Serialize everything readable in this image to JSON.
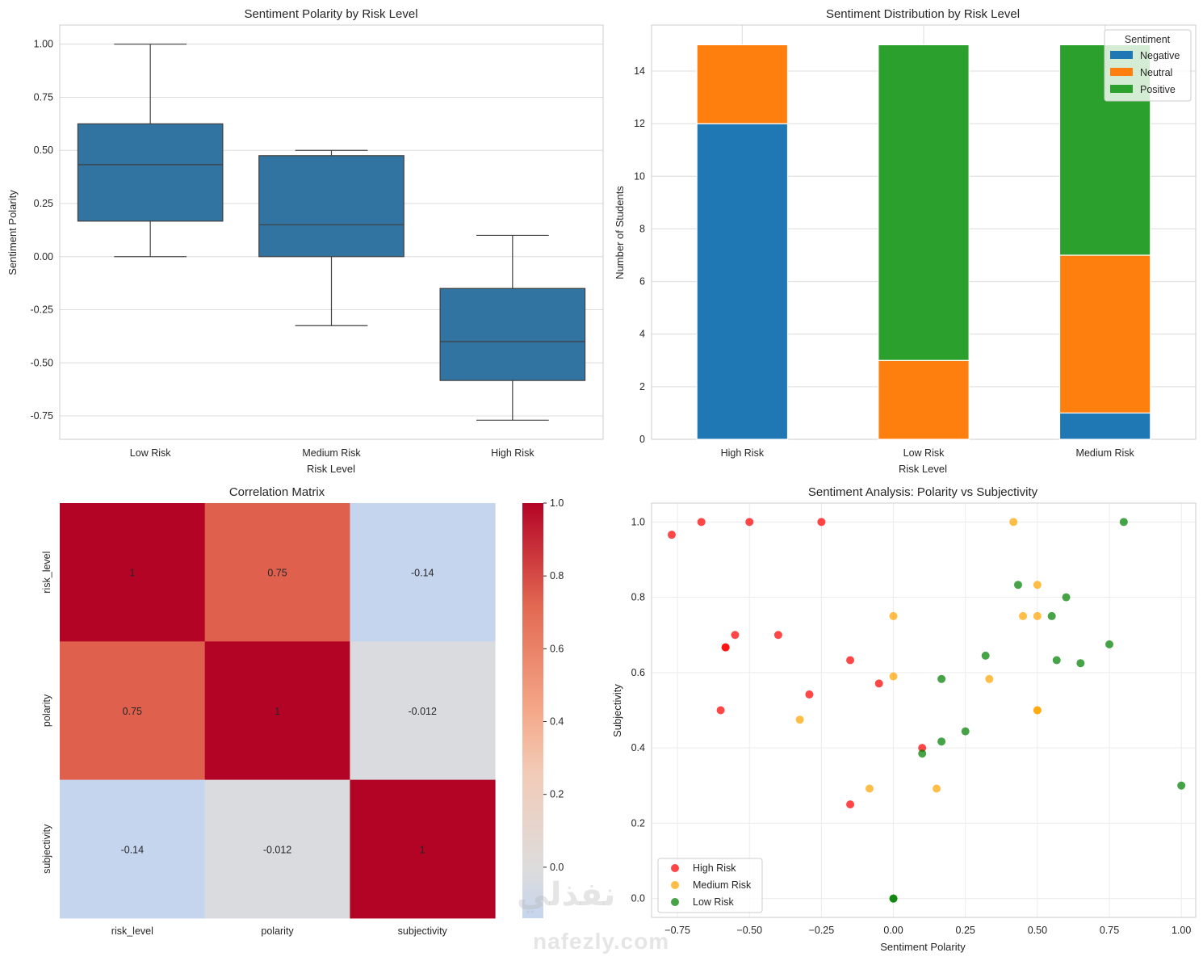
{
  "chart_data": [
    {
      "type": "box",
      "title": "Sentiment Polarity by Risk Level",
      "xlabel": "Risk Level",
      "ylabel": "Sentiment Polarity",
      "categories": [
        "Low Risk",
        "Medium Risk",
        "High Risk"
      ],
      "boxes": [
        {
          "whisker_low": 0.0,
          "q1": 0.167,
          "median": 0.433,
          "q3": 0.625,
          "whisker_high": 1.0
        },
        {
          "whisker_low": -0.325,
          "q1": 0.0,
          "median": 0.15,
          "q3": 0.475,
          "whisker_high": 0.5
        },
        {
          "whisker_low": -0.77,
          "q1": -0.583,
          "median": -0.4,
          "q3": -0.15,
          "whisker_high": 0.1
        }
      ],
      "yticks": [
        "1.00",
        "0.75",
        "0.50",
        "0.25",
        "0.00",
        "-0.25",
        "-0.50",
        "-0.75"
      ],
      "ytick_values": [
        1.0,
        0.75,
        0.5,
        0.25,
        0.0,
        -0.25,
        -0.5,
        -0.75
      ],
      "ylim": [
        -0.86,
        1.09
      ],
      "color": "#3274a1",
      "grid": true
    },
    {
      "type": "bar",
      "stacked": true,
      "title": "Sentiment Distribution by Risk Level",
      "xlabel": "Risk Level",
      "ylabel": "Number of Students",
      "categories": [
        "High Risk",
        "Low Risk",
        "Medium Risk"
      ],
      "series": [
        {
          "name": "Negative",
          "color": "#1f77b4",
          "values": [
            12,
            0,
            1
          ]
        },
        {
          "name": "Neutral",
          "color": "#ff7f0e",
          "values": [
            3,
            3,
            6
          ]
        },
        {
          "name": "Positive",
          "color": "#2ca02c",
          "values": [
            0,
            12,
            8
          ]
        }
      ],
      "legend_title": "Sentiment",
      "legend_position": "top-right",
      "yticks": [
        "0",
        "2",
        "4",
        "6",
        "8",
        "10",
        "12",
        "14"
      ],
      "ytick_values": [
        0,
        2,
        4,
        6,
        8,
        10,
        12,
        14
      ],
      "ylim": [
        0,
        15.75
      ],
      "grid": true
    },
    {
      "type": "heatmap",
      "title": "Correlation Matrix",
      "rows": [
        "risk_level",
        "polarity",
        "subjectivity"
      ],
      "cols": [
        "risk_level",
        "polarity",
        "subjectivity"
      ],
      "values": [
        [
          1,
          0.75,
          -0.14
        ],
        [
          0.75,
          1,
          -0.012
        ],
        [
          -0.14,
          -0.012,
          1
        ]
      ],
      "labels": [
        [
          "1",
          "0.75",
          "-0.14"
        ],
        [
          "0.75",
          "1",
          "-0.012"
        ],
        [
          "-0.14",
          "-0.012",
          "1"
        ]
      ],
      "colormap": "coolwarm",
      "colorbar_range": [
        -0.14,
        1.0
      ],
      "colorbar_ticks": [
        "1.0",
        "0.8",
        "0.6",
        "0.4",
        "0.2",
        "0.0"
      ],
      "colorbar_tick_values": [
        1.0,
        0.8,
        0.6,
        0.4,
        0.2,
        0.0
      ]
    },
    {
      "type": "scatter",
      "title": "Sentiment Analysis: Polarity vs Subjectivity",
      "xlabel": "Sentiment Polarity",
      "ylabel": "Subjectivity",
      "xlim": [
        -0.84,
        1.05
      ],
      "ylim": [
        -0.05,
        1.05
      ],
      "xticks": [
        "−0.75",
        "−0.50",
        "−0.25",
        "0.00",
        "0.25",
        "0.50",
        "0.75",
        "1.00"
      ],
      "xtick_values": [
        -0.75,
        -0.5,
        -0.25,
        0.0,
        0.25,
        0.5,
        0.75,
        1.0
      ],
      "yticks": [
        "0.0",
        "0.2",
        "0.4",
        "0.6",
        "0.8",
        "1.0"
      ],
      "ytick_values": [
        0.0,
        0.2,
        0.4,
        0.6,
        0.8,
        1.0
      ],
      "legend_position": "lower-left",
      "grid": true,
      "series": [
        {
          "name": "High Risk",
          "color": "#ff0000",
          "points": [
            [
              -0.77,
              0.966
            ],
            [
              -0.667,
              1.0
            ],
            [
              -0.5,
              1.0
            ],
            [
              -0.25,
              1.0
            ],
            [
              -0.55,
              0.7
            ],
            [
              -0.583,
              0.667
            ],
            [
              -0.583,
              0.667
            ],
            [
              -0.4,
              0.7
            ],
            [
              -0.15,
              0.633
            ],
            [
              -0.05,
              0.571
            ],
            [
              -0.292,
              0.542
            ],
            [
              -0.6,
              0.5
            ],
            [
              -0.15,
              0.25
            ],
            [
              0.1,
              0.4
            ]
          ]
        },
        {
          "name": "Medium Risk",
          "color": "#ffa500",
          "points": [
            [
              0.417,
              1.0
            ],
            [
              0.0,
              0.75
            ],
            [
              0.5,
              0.833
            ],
            [
              0.45,
              0.75
            ],
            [
              0.5,
              0.75
            ],
            [
              0.0,
              0.59
            ],
            [
              0.333,
              0.583
            ],
            [
              -0.325,
              0.475
            ],
            [
              -0.083,
              0.292
            ],
            [
              0.15,
              0.292
            ],
            [
              0.5,
              0.5
            ],
            [
              0.5,
              0.5
            ]
          ]
        },
        {
          "name": "Low Risk",
          "color": "#008000",
          "points": [
            [
              0.8,
              1.0
            ],
            [
              0.433,
              0.833
            ],
            [
              0.6,
              0.8
            ],
            [
              0.55,
              0.75
            ],
            [
              0.32,
              0.645
            ],
            [
              0.567,
              0.633
            ],
            [
              0.65,
              0.625
            ],
            [
              0.75,
              0.675
            ],
            [
              0.167,
              0.583
            ],
            [
              0.167,
              0.417
            ],
            [
              0.25,
              0.444
            ],
            [
              0.1,
              0.385
            ],
            [
              1.0,
              0.3
            ],
            [
              0.0,
              0.0
            ],
            [
              0.0,
              0.0
            ]
          ]
        }
      ]
    }
  ],
  "watermark": {
    "arabic": "نفذلي",
    "latin": "nafezly.com"
  }
}
